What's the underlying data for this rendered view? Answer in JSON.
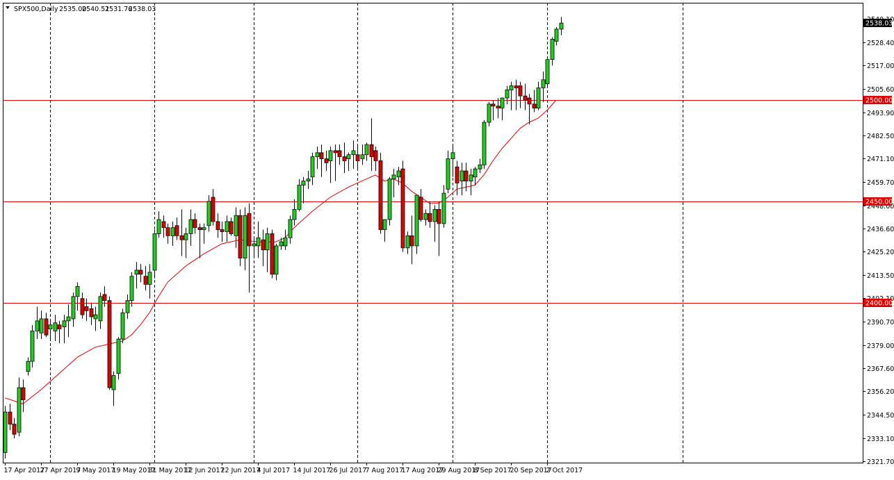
{
  "header": {
    "symbol": "SPX500,Daily",
    "open": "2535.00",
    "high": "2540.51",
    "low": "2531.76",
    "close": "2538.03"
  },
  "colors": {
    "bull": "#22cc22",
    "bear": "#dd0000",
    "wick": "#000000",
    "ma_line": "#e00000",
    "hline": "#e00000",
    "price_tag_bg": "#e00000",
    "price_tag_fg": "#ffffff",
    "current_tag_bg": "#000000",
    "current_tag_fg": "#ffffff",
    "period_sep": "#000000"
  },
  "chart_data": {
    "type": "candlestick",
    "symbol": "SPX500",
    "timeframe": "Daily",
    "ylim": [
      2321.0,
      2548.0
    ],
    "y_ticks": [
      "2540.10",
      "2528.40",
      "2517.00",
      "2505.60",
      "2493.90",
      "2482.50",
      "2471.10",
      "2459.70",
      "2448.00",
      "2436.60",
      "2425.20",
      "2413.50",
      "2402.10",
      "2390.70",
      "2379.00",
      "2367.60",
      "2356.20",
      "2344.50",
      "2333.10",
      "2321.70"
    ],
    "x_labels": [
      {
        "label": "17 Apr 2017",
        "index": 0
      },
      {
        "label": "27 Apr 2017",
        "index": 8
      },
      {
        "label": "9 May 2017",
        "index": 16
      },
      {
        "label": "19 May 2017",
        "index": 24
      },
      {
        "label": "31 May 2017",
        "index": 32
      },
      {
        "label": "12 Jun 2017",
        "index": 40
      },
      {
        "label": "22 Jun 2017",
        "index": 48
      },
      {
        "label": "4 Jul 2017",
        "index": 56
      },
      {
        "label": "14 Jul 2017",
        "index": 64
      },
      {
        "label": "26 Jul 2017",
        "index": 72
      },
      {
        "label": "7 Aug 2017",
        "index": 80
      },
      {
        "label": "17 Aug 2017",
        "index": 88
      },
      {
        "label": "29 Aug 2017",
        "index": 96
      },
      {
        "label": "8 Sep 2017",
        "index": 104
      },
      {
        "label": "20 Sep 2017",
        "index": 112
      },
      {
        "label": "2 Oct 2017",
        "index": 120
      }
    ],
    "period_separators": [
      10,
      33,
      55,
      78,
      99,
      120,
      150
    ],
    "horizontal_lines": [
      {
        "value": 2500.0,
        "label": "2500.00"
      },
      {
        "value": 2450.0,
        "label": "2450.00"
      },
      {
        "value": 2400.0,
        "label": "2400.00"
      }
    ],
    "current_price": {
      "value": 2538.03,
      "label": "2538.03"
    },
    "candles": [
      [
        2326,
        2349,
        2323,
        2346
      ],
      [
        2346,
        2350,
        2337,
        2340
      ],
      [
        2340,
        2343,
        2333,
        2335
      ],
      [
        2336,
        2363,
        2334,
        2358
      ],
      [
        2358,
        2362,
        2346,
        2352
      ],
      [
        2366,
        2373,
        2364,
        2371
      ],
      [
        2371,
        2389,
        2368,
        2386
      ],
      [
        2386,
        2398,
        2382,
        2391
      ],
      [
        2385,
        2396,
        2382,
        2392
      ],
      [
        2392,
        2395,
        2383,
        2384
      ],
      [
        2387,
        2392,
        2381,
        2389
      ],
      [
        2386,
        2394,
        2381,
        2390
      ],
      [
        2389,
        2391,
        2380,
        2387
      ],
      [
        2388,
        2394,
        2380,
        2391
      ],
      [
        2391,
        2399,
        2383,
        2393
      ],
      [
        2392,
        2405,
        2388,
        2403
      ],
      [
        2403,
        2410,
        2396,
        2408
      ],
      [
        2402,
        2405,
        2392,
        2394
      ],
      [
        2398,
        2402,
        2391,
        2396
      ],
      [
        2397,
        2400,
        2389,
        2393
      ],
      [
        2392,
        2398,
        2386,
        2394
      ],
      [
        2391,
        2405,
        2387,
        2403
      ],
      [
        2404,
        2408,
        2398,
        2401
      ],
      [
        2401,
        2403,
        2357,
        2358
      ],
      [
        2357,
        2366,
        2349,
        2364
      ],
      [
        2365,
        2383,
        2362,
        2382
      ],
      [
        2382,
        2397,
        2380,
        2395
      ],
      [
        2395,
        2404,
        2392,
        2401
      ],
      [
        2401,
        2415,
        2398,
        2413
      ],
      [
        2414,
        2420,
        2407,
        2416
      ],
      [
        2416,
        2419,
        2410,
        2414
      ],
      [
        2413,
        2418,
        2406,
        2409
      ],
      [
        2409,
        2419,
        2402,
        2415
      ],
      [
        2416,
        2436,
        2412,
        2434
      ],
      [
        2434,
        2445,
        2432,
        2441
      ],
      [
        2440,
        2443,
        2432,
        2437
      ],
      [
        2437,
        2439,
        2429,
        2433
      ],
      [
        2433,
        2440,
        2428,
        2437
      ],
      [
        2438,
        2442,
        2431,
        2433
      ],
      [
        2433,
        2446,
        2423,
        2431
      ],
      [
        2431,
        2437,
        2422,
        2434
      ],
      [
        2434,
        2446,
        2428,
        2441
      ],
      [
        2441,
        2444,
        2434,
        2437
      ],
      [
        2437,
        2439,
        2422,
        2436
      ],
      [
        2436,
        2439,
        2429,
        2437
      ],
      [
        2438,
        2453,
        2435,
        2450
      ],
      [
        2452,
        2456,
        2438,
        2440
      ],
      [
        2440,
        2444,
        2432,
        2436
      ],
      [
        2436,
        2440,
        2430,
        2435
      ],
      [
        2435,
        2443,
        2430,
        2440
      ],
      [
        2440,
        2442,
        2433,
        2434
      ],
      [
        2433,
        2447,
        2427,
        2443
      ],
      [
        2443,
        2446,
        2418,
        2422
      ],
      [
        2422,
        2447,
        2416,
        2443
      ],
      [
        2444,
        2449,
        2405,
        2428
      ],
      [
        2428,
        2432,
        2423,
        2429
      ],
      [
        2428,
        2440,
        2422,
        2432
      ],
      [
        2431,
        2436,
        2418,
        2426
      ],
      [
        2426,
        2437,
        2415,
        2434
      ],
      [
        2434,
        2436,
        2412,
        2414
      ],
      [
        2414,
        2429,
        2411,
        2428
      ],
      [
        2428,
        2432,
        2426,
        2430
      ],
      [
        2428,
        2436,
        2426,
        2432
      ],
      [
        2432,
        2443,
        2429,
        2441
      ],
      [
        2441,
        2451,
        2438,
        2446
      ],
      [
        2446,
        2461,
        2445,
        2458
      ],
      [
        2458,
        2462,
        2449,
        2460
      ],
      [
        2460,
        2465,
        2456,
        2461
      ],
      [
        2462,
        2474,
        2458,
        2472
      ],
      [
        2472,
        2477,
        2466,
        2474
      ],
      [
        2474,
        2478,
        2462,
        2471
      ],
      [
        2471,
        2475,
        2465,
        2469
      ],
      [
        2470,
        2477,
        2459,
        2475
      ],
      [
        2475,
        2478,
        2460,
        2474
      ],
      [
        2475,
        2478,
        2468,
        2472
      ],
      [
        2472,
        2479,
        2464,
        2470
      ],
      [
        2471,
        2474,
        2465,
        2473
      ],
      [
        2473,
        2480,
        2466,
        2475
      ],
      [
        2473,
        2477,
        2465,
        2470
      ],
      [
        2471,
        2478,
        2468,
        2473
      ],
      [
        2473,
        2479,
        2470,
        2478
      ],
      [
        2478,
        2491,
        2465,
        2472
      ],
      [
        2475,
        2477,
        2465,
        2470
      ],
      [
        2470,
        2474,
        2434,
        2436
      ],
      [
        2436,
        2440,
        2430,
        2441
      ],
      [
        2441,
        2462,
        2438,
        2461
      ],
      [
        2461,
        2466,
        2452,
        2463
      ],
      [
        2462,
        2467,
        2458,
        2465
      ],
      [
        2466,
        2470,
        2425,
        2427
      ],
      [
        2427,
        2435,
        2424,
        2433
      ],
      [
        2433,
        2443,
        2419,
        2428
      ],
      [
        2428,
        2452,
        2424,
        2453
      ],
      [
        2452,
        2456,
        2440,
        2441
      ],
      [
        2441,
        2446,
        2438,
        2444
      ],
      [
        2444,
        2450,
        2437,
        2440
      ],
      [
        2440,
        2448,
        2430,
        2446
      ],
      [
        2446,
        2450,
        2423,
        2439
      ],
      [
        2439,
        2458,
        2437,
        2454
      ],
      [
        2456,
        2475,
        2454,
        2471
      ],
      [
        2471,
        2478,
        2462,
        2474
      ],
      [
        2467,
        2470,
        2453,
        2459
      ],
      [
        2460,
        2469,
        2453,
        2465
      ],
      [
        2465,
        2469,
        2455,
        2460
      ],
      [
        2460,
        2466,
        2453,
        2463
      ],
      [
        2462,
        2467,
        2458,
        2466
      ],
      [
        2466,
        2471,
        2464,
        2468
      ],
      [
        2468,
        2490,
        2466,
        2489
      ],
      [
        2489,
        2499,
        2487,
        2498
      ],
      [
        2498,
        2500,
        2490,
        2497
      ],
      [
        2497,
        2501,
        2491,
        2496
      ],
      [
        2496,
        2500,
        2490,
        2501
      ],
      [
        2501,
        2507,
        2498,
        2505
      ],
      [
        2505,
        2509,
        2495,
        2507
      ],
      [
        2507,
        2510,
        2495,
        2506
      ],
      [
        2507,
        2509,
        2496,
        2502
      ],
      [
        2502,
        2508,
        2495,
        2500
      ],
      [
        2501,
        2503,
        2488,
        2498
      ],
      [
        2498,
        2505,
        2494,
        2496
      ],
      [
        2496,
        2509,
        2495,
        2506
      ],
      [
        2506,
        2514,
        2499,
        2510
      ],
      [
        2508,
        2521,
        2506,
        2520
      ],
      [
        2520,
        2531,
        2517,
        2530
      ],
      [
        2529,
        2536,
        2527,
        2535
      ],
      [
        2535,
        2541,
        2532,
        2538
      ]
    ],
    "ma": [
      [
        0,
        2353
      ],
      [
        4,
        2350
      ],
      [
        8,
        2357
      ],
      [
        12,
        2365
      ],
      [
        16,
        2373
      ],
      [
        20,
        2378
      ],
      [
        24,
        2380
      ],
      [
        26,
        2381
      ],
      [
        28,
        2384
      ],
      [
        30,
        2389
      ],
      [
        32,
        2395
      ],
      [
        34,
        2403
      ],
      [
        36,
        2410
      ],
      [
        40,
        2418
      ],
      [
        44,
        2424
      ],
      [
        48,
        2429
      ],
      [
        52,
        2431
      ],
      [
        56,
        2430
      ],
      [
        60,
        2430
      ],
      [
        62,
        2432
      ],
      [
        64,
        2437
      ],
      [
        68,
        2445
      ],
      [
        72,
        2452
      ],
      [
        76,
        2457
      ],
      [
        80,
        2461
      ],
      [
        82,
        2463
      ],
      [
        84,
        2460
      ],
      [
        86,
        2461
      ],
      [
        88,
        2459
      ],
      [
        90,
        2455
      ],
      [
        92,
        2452
      ],
      [
        94,
        2449
      ],
      [
        96,
        2449
      ],
      [
        98,
        2452
      ],
      [
        100,
        2456
      ],
      [
        104,
        2458
      ],
      [
        106,
        2463
      ],
      [
        108,
        2470
      ],
      [
        110,
        2476
      ],
      [
        112,
        2481
      ],
      [
        114,
        2486
      ],
      [
        116,
        2489
      ],
      [
        118,
        2491
      ],
      [
        120,
        2495
      ],
      [
        122,
        2500
      ]
    ]
  }
}
